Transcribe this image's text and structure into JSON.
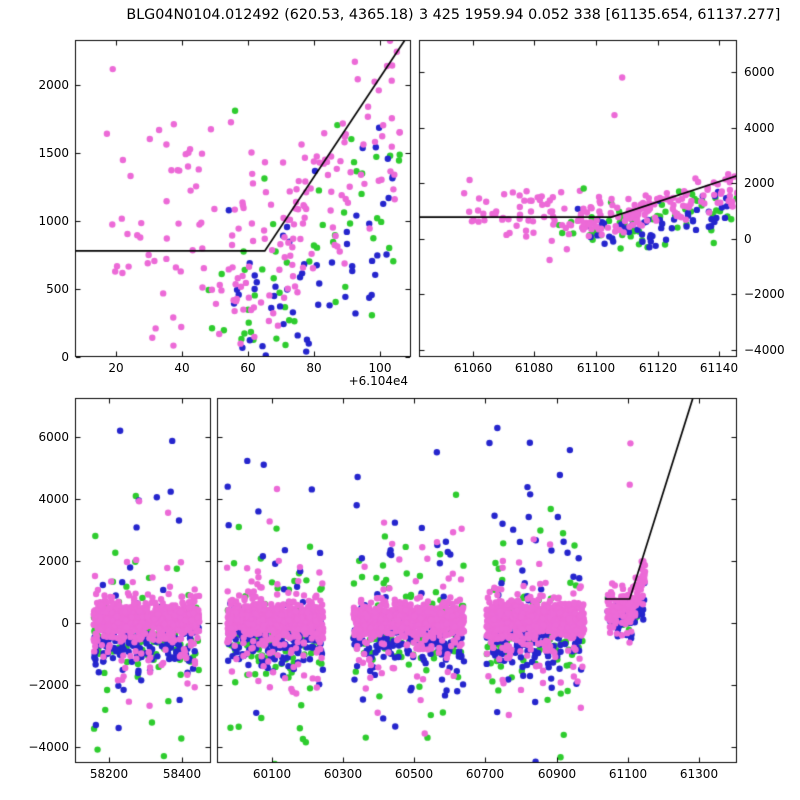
{
  "figure": {
    "title_left": "BLG04N0104.012492 (620.53, 4365.18)",
    "title_right": "3 425 1959.94 0.052 338 [61135.654, 61137.277]",
    "colors": {
      "pink": "#EC6AD7",
      "green": "#2ECC2E",
      "blue": "#2525CD",
      "line": "#000000",
      "axis": "#000000",
      "background": "#ffffff"
    }
  },
  "chart_data": {
    "type": "scatter",
    "marker_radius_px": 3.2,
    "lines": {
      "model": {
        "points": [
          [
            61035.5,
            780
          ],
          [
            61105,
            780
          ],
          [
            61285,
            7350
          ]
        ]
      }
    },
    "datasets": {
      "event": {
        "clusters": [
          {
            "c": "green",
            "n": 50,
            "seed": 14,
            "x": [
              61088,
              61146
            ],
            "mu": 620,
            "sig": 300,
            "trend": {
              "t0": 61112,
              "s": 17
            }
          },
          {
            "c": "green",
            "n": 9,
            "seed": 15,
            "x": [
              61098,
              61140
            ],
            "mu": -60,
            "sig": 260
          },
          {
            "c": "blue",
            "n": 52,
            "seed": 16,
            "x": [
              61090,
              61146
            ],
            "mu": 430,
            "sig": 360,
            "trend": {
              "t0": 61112,
              "s": 19
            }
          },
          {
            "c": "blue",
            "n": 12,
            "seed": 17,
            "x": [
              61095,
              61128
            ],
            "mu": 90,
            "sig": 220
          },
          {
            "c": "pink",
            "n": 60,
            "seed": 11,
            "x": [
              61056,
              61102
            ],
            "mu": 1050,
            "sig": 480
          },
          {
            "c": "pink",
            "n": 125,
            "seed": 12,
            "x": [
              61094,
              61146
            ],
            "mu": 720,
            "sig": 300,
            "trend": {
              "t0": 61105,
              "s": 27
            }
          },
          {
            "c": "pink",
            "n": 12,
            "seed": 13,
            "x": [
              61068,
              61100
            ],
            "mu": 330,
            "sig": 140
          }
        ],
        "points": [
          [
            61108.5,
            5800,
            "pink"
          ],
          [
            61106,
            4450,
            "pink"
          ],
          [
            61096,
            1810,
            "green"
          ]
        ]
      },
      "longterm": {
        "clusters": [
          {
            "c": "green",
            "n": 90,
            "seed": 21,
            "x": [
              58158,
              58448
            ],
            "mu": -300,
            "sig": 560
          },
          {
            "c": "green",
            "n": 38,
            "seed": 22,
            "x": [
              58158,
              58448
            ],
            "mu": 0,
            "sig": 2000
          },
          {
            "c": "blue",
            "n": 135,
            "seed": 23,
            "x": [
              58158,
              58448
            ],
            "mu": -550,
            "sig": 430
          },
          {
            "c": "blue",
            "n": 45,
            "seed": 24,
            "x": [
              58158,
              58448
            ],
            "mu": -200,
            "sig": 1700
          },
          {
            "c": "blue",
            "n": 4,
            "seed": 25,
            "x": [
              58158,
              58448
            ],
            "mu": 4600,
            "sig": 1000
          },
          {
            "c": "pink",
            "n": 520,
            "seed": 26,
            "x": [
              58158,
              58448
            ],
            "mu": 120,
            "sig": 280
          },
          {
            "c": "pink",
            "n": 110,
            "seed": 27,
            "x": [
              58158,
              58448
            ],
            "mu": -100,
            "sig": 800
          },
          {
            "c": "pink",
            "n": 26,
            "seed": 28,
            "x": [
              58158,
              58448
            ],
            "mu": 0,
            "sig": 1800
          },
          {
            "c": "green",
            "n": 90,
            "seed": 31,
            "x": [
              59975,
              60245
            ],
            "mu": -300,
            "sig": 560
          },
          {
            "c": "green",
            "n": 38,
            "seed": 32,
            "x": [
              59975,
              60245
            ],
            "mu": 0,
            "sig": 2000
          },
          {
            "c": "blue",
            "n": 135,
            "seed": 33,
            "x": [
              59975,
              60245
            ],
            "mu": -550,
            "sig": 430
          },
          {
            "c": "blue",
            "n": 45,
            "seed": 34,
            "x": [
              59975,
              60245
            ],
            "mu": -200,
            "sig": 1700
          },
          {
            "c": "blue",
            "n": 4,
            "seed": 35,
            "x": [
              59975,
              60245
            ],
            "mu": 4600,
            "sig": 1000
          },
          {
            "c": "pink",
            "n": 520,
            "seed": 36,
            "x": [
              59975,
              60245
            ],
            "mu": 120,
            "sig": 280
          },
          {
            "c": "pink",
            "n": 110,
            "seed": 37,
            "x": [
              59975,
              60245
            ],
            "mu": -100,
            "sig": 800
          },
          {
            "c": "pink",
            "n": 26,
            "seed": 38,
            "x": [
              59975,
              60245
            ],
            "mu": 0,
            "sig": 1800
          },
          {
            "c": "green",
            "n": 90,
            "seed": 41,
            "x": [
              60330,
              60640
            ],
            "mu": -300,
            "sig": 560
          },
          {
            "c": "green",
            "n": 38,
            "seed": 42,
            "x": [
              60330,
              60640
            ],
            "mu": 0,
            "sig": 2000
          },
          {
            "c": "blue",
            "n": 135,
            "seed": 43,
            "x": [
              60330,
              60640
            ],
            "mu": -550,
            "sig": 430
          },
          {
            "c": "blue",
            "n": 45,
            "seed": 44,
            "x": [
              60330,
              60640
            ],
            "mu": -200,
            "sig": 1700
          },
          {
            "c": "blue",
            "n": 5,
            "seed": 45,
            "x": [
              60330,
              60640
            ],
            "mu": 4600,
            "sig": 1100
          },
          {
            "c": "pink",
            "n": 520,
            "seed": 46,
            "x": [
              60330,
              60640
            ],
            "mu": 120,
            "sig": 280
          },
          {
            "c": "pink",
            "n": 110,
            "seed": 47,
            "x": [
              60330,
              60640
            ],
            "mu": -100,
            "sig": 800
          },
          {
            "c": "pink",
            "n": 26,
            "seed": 48,
            "x": [
              60330,
              60640
            ],
            "mu": 0,
            "sig": 1800
          },
          {
            "c": "green",
            "n": 90,
            "seed": 51,
            "x": [
              60703,
              60978
            ],
            "mu": -300,
            "sig": 560
          },
          {
            "c": "green",
            "n": 38,
            "seed": 52,
            "x": [
              60703,
              60978
            ],
            "mu": 0,
            "sig": 2000
          },
          {
            "c": "blue",
            "n": 135,
            "seed": 53,
            "x": [
              60703,
              60978
            ],
            "mu": -550,
            "sig": 430
          },
          {
            "c": "blue",
            "n": 45,
            "seed": 54,
            "x": [
              60703,
              60978
            ],
            "mu": -200,
            "sig": 1700
          },
          {
            "c": "blue",
            "n": 12,
            "seed": 55,
            "x": [
              60703,
              60978
            ],
            "mu": 4300,
            "sig": 1100
          },
          {
            "c": "pink",
            "n": 520,
            "seed": 56,
            "x": [
              60703,
              60978
            ],
            "mu": 120,
            "sig": 280
          },
          {
            "c": "pink",
            "n": 110,
            "seed": 57,
            "x": [
              60703,
              60978
            ],
            "mu": -100,
            "sig": 800
          },
          {
            "c": "pink",
            "n": 26,
            "seed": 58,
            "x": [
              60703,
              60978
            ],
            "mu": 0,
            "sig": 1800
          },
          {
            "c": "green",
            "n": 12,
            "seed": 61,
            "x": [
              61042,
              61148
            ],
            "mu": 150,
            "sig": 350
          },
          {
            "c": "blue",
            "n": 55,
            "seed": 62,
            "x": [
              61042,
              61148
            ],
            "mu": 120,
            "sig": 330,
            "trend": {
              "t0": 61105,
              "s": 15
            }
          },
          {
            "c": "pink",
            "n": 150,
            "seed": 63,
            "x": [
              61042,
              61148
            ],
            "mu": 420,
            "sig": 330,
            "trend": {
              "t0": 61105,
              "s": 26
            }
          }
        ],
        "points": [
          [
            61107,
            5790,
            "pink"
          ],
          [
            61105,
            4460,
            "pink"
          ]
        ]
      }
    },
    "panels": [
      {
        "id": "top-left",
        "px": {
          "l": 75,
          "t": 40,
          "r": 411,
          "b": 357
        },
        "xlim": [
          61047.5,
          61149.3
        ],
        "ylim": [
          0,
          2330
        ],
        "data": "event",
        "line": "model",
        "xticks": [
          {
            "v": 61060,
            "label": "20"
          },
          {
            "v": 61080,
            "label": "40"
          },
          {
            "v": 61100,
            "label": "60"
          },
          {
            "v": 61120,
            "label": "80"
          },
          {
            "v": 61140,
            "label": "100"
          }
        ],
        "x_offset_text": "+6.104e4",
        "yticks": [
          {
            "v": 0,
            "label": "0"
          },
          {
            "v": 500,
            "label": "500"
          },
          {
            "v": 1000,
            "label": "1000"
          },
          {
            "v": 1500,
            "label": "1500"
          },
          {
            "v": 2000,
            "label": "2000"
          }
        ],
        "ytick_side": "left"
      },
      {
        "id": "top-right",
        "px": {
          "l": 419,
          "t": 40,
          "r": 737,
          "b": 357
        },
        "xlim": [
          61042.5,
          61145.8
        ],
        "ylim": [
          -4250,
          7150
        ],
        "data": "event",
        "line": "model",
        "xticks": [
          {
            "v": 61060,
            "label": "61060"
          },
          {
            "v": 61080,
            "label": "61080"
          },
          {
            "v": 61100,
            "label": "61100"
          },
          {
            "v": 61120,
            "label": "61120"
          },
          {
            "v": 61140,
            "label": "61140"
          }
        ],
        "yticks": [
          {
            "v": -4000,
            "label": "−4000"
          },
          {
            "v": -2000,
            "label": "−2000"
          },
          {
            "v": 0,
            "label": "0"
          },
          {
            "v": 2000,
            "label": "2000"
          },
          {
            "v": 4000,
            "label": "4000"
          },
          {
            "v": 6000,
            "label": "6000"
          }
        ],
        "ytick_side": "right"
      },
      {
        "id": "bottom-left",
        "px": {
          "l": 75,
          "t": 398,
          "r": 211,
          "b": 763
        },
        "xlim": [
          58107,
          58480
        ],
        "ylim": [
          -4500,
          7250
        ],
        "data": "longterm",
        "line": null,
        "xticks": [
          {
            "v": 58200,
            "label": "58200"
          },
          {
            "v": 58400,
            "label": "58400"
          }
        ],
        "yticks": [
          {
            "v": -4000,
            "label": "−4000"
          },
          {
            "v": -2000,
            "label": "−2000"
          },
          {
            "v": 0,
            "label": "0"
          },
          {
            "v": 2000,
            "label": "2000"
          },
          {
            "v": 4000,
            "label": "4000"
          },
          {
            "v": 6000,
            "label": "6000"
          }
        ],
        "ytick_side": "left"
      },
      {
        "id": "bottom-right",
        "px": {
          "l": 217,
          "t": 398,
          "r": 737,
          "b": 763
        },
        "xlim": [
          59947,
          61406
        ],
        "ylim": [
          -4500,
          7250
        ],
        "data": "longterm",
        "line": "model",
        "xticks": [
          {
            "v": 60100,
            "label": "60100"
          },
          {
            "v": 60300,
            "label": "60300"
          },
          {
            "v": 60500,
            "label": "60500"
          },
          {
            "v": 60700,
            "label": "60700"
          },
          {
            "v": 60900,
            "label": "60900"
          },
          {
            "v": 61100,
            "label": "61100"
          },
          {
            "v": 61300,
            "label": "61300"
          }
        ],
        "yticks": [
          {
            "v": -4000,
            "label": ""
          },
          {
            "v": -2000,
            "label": ""
          },
          {
            "v": 0,
            "label": ""
          },
          {
            "v": 2000,
            "label": ""
          },
          {
            "v": 4000,
            "label": ""
          },
          {
            "v": 6000,
            "label": ""
          }
        ],
        "ytick_side": "none"
      }
    ]
  }
}
